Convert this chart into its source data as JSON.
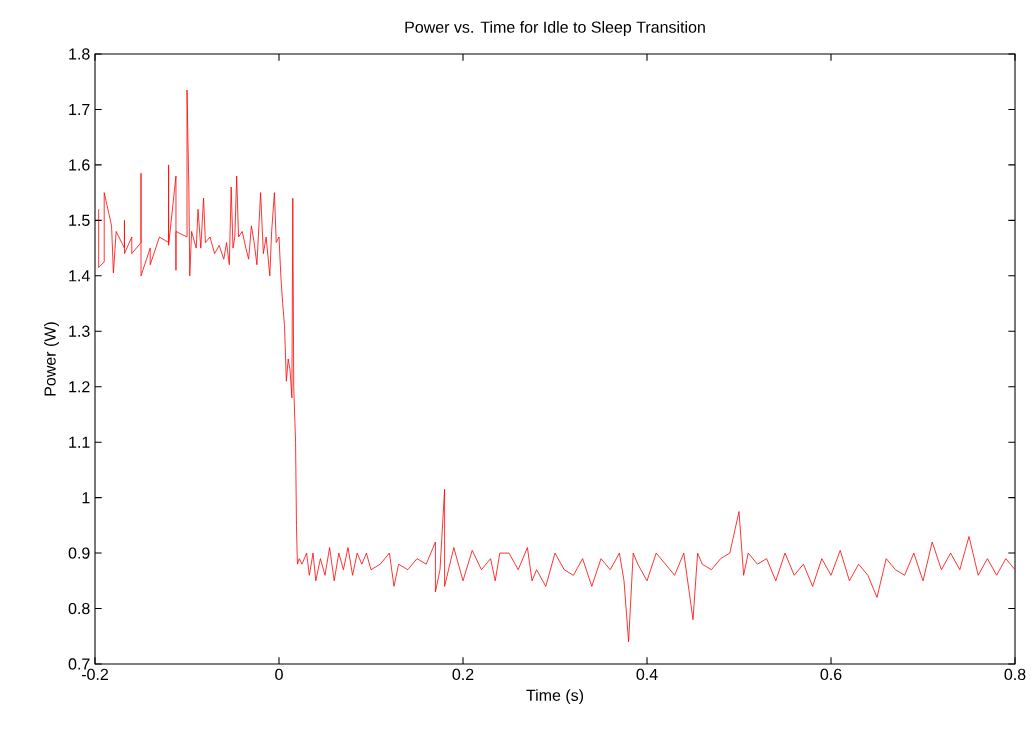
{
  "chart_data": {
    "type": "line",
    "title": "Power vs. Time for Idle to Sleep Transition",
    "xlabel": "Time (s)",
    "ylabel": "Power (W)",
    "xlim": [
      -0.2,
      0.8
    ],
    "ylim": [
      0.7,
      1.8
    ],
    "xticks": [
      -0.2,
      0,
      0.2,
      0.4,
      0.6,
      0.8
    ],
    "yticks": [
      0.7,
      0.8,
      0.9,
      1,
      1.1,
      1.2,
      1.3,
      1.4,
      1.5,
      1.6,
      1.7,
      1.8
    ],
    "grid": false,
    "marker": "none",
    "line_style": "solid",
    "series": [
      {
        "color": "#ff0000",
        "x": [
          -0.196,
          -0.196,
          -0.19,
          -0.19,
          -0.182,
          -0.18,
          -0.177,
          -0.168,
          -0.168,
          -0.168,
          -0.16,
          -0.16,
          -0.15,
          -0.15,
          -0.15,
          -0.14,
          -0.14,
          -0.13,
          -0.12,
          -0.12,
          -0.12,
          -0.112,
          -0.112,
          -0.112,
          -0.1,
          -0.1,
          -0.098,
          -0.097,
          -0.095,
          -0.09,
          -0.088,
          -0.085,
          -0.082,
          -0.08,
          -0.075,
          -0.07,
          -0.065,
          -0.06,
          -0.057,
          -0.054,
          -0.052,
          -0.05,
          -0.048,
          -0.046,
          -0.044,
          -0.04,
          -0.036,
          -0.033,
          -0.03,
          -0.027,
          -0.024,
          -0.02,
          -0.017,
          -0.014,
          -0.01,
          -0.008,
          -0.005,
          -0.003,
          0.0,
          0.002,
          0.004,
          0.006,
          0.008,
          0.01,
          0.012,
          0.014,
          0.015,
          0.016,
          0.018,
          0.019,
          0.02,
          0.022,
          0.025,
          0.03,
          0.033,
          0.037,
          0.04,
          0.045,
          0.05,
          0.055,
          0.06,
          0.065,
          0.07,
          0.075,
          0.08,
          0.085,
          0.09,
          0.095,
          0.1,
          0.11,
          0.12,
          0.125,
          0.13,
          0.14,
          0.15,
          0.16,
          0.17,
          0.17,
          0.175,
          0.18,
          0.18,
          0.19,
          0.2,
          0.21,
          0.22,
          0.23,
          0.235,
          0.24,
          0.25,
          0.26,
          0.27,
          0.275,
          0.28,
          0.29,
          0.3,
          0.31,
          0.32,
          0.33,
          0.34,
          0.35,
          0.36,
          0.37,
          0.375,
          0.38,
          0.385,
          0.39,
          0.4,
          0.41,
          0.42,
          0.43,
          0.44,
          0.45,
          0.455,
          0.46,
          0.47,
          0.48,
          0.49,
          0.5,
          0.505,
          0.51,
          0.52,
          0.53,
          0.54,
          0.55,
          0.56,
          0.57,
          0.58,
          0.59,
          0.6,
          0.61,
          0.62,
          0.63,
          0.64,
          0.65,
          0.66,
          0.67,
          0.68,
          0.69,
          0.7,
          0.71,
          0.72,
          0.73,
          0.74,
          0.75,
          0.76,
          0.77,
          0.78,
          0.79,
          0.8
        ],
        "values": [
          1.52,
          1.415,
          1.425,
          1.55,
          1.49,
          1.405,
          1.48,
          1.45,
          1.5,
          1.44,
          1.47,
          1.44,
          1.46,
          1.585,
          1.4,
          1.45,
          1.42,
          1.47,
          1.46,
          1.6,
          1.455,
          1.58,
          1.41,
          1.48,
          1.47,
          1.735,
          1.56,
          1.4,
          1.48,
          1.45,
          1.52,
          1.45,
          1.54,
          1.46,
          1.47,
          1.44,
          1.455,
          1.43,
          1.46,
          1.42,
          1.56,
          1.45,
          1.47,
          1.58,
          1.47,
          1.48,
          1.45,
          1.43,
          1.49,
          1.46,
          1.42,
          1.55,
          1.44,
          1.47,
          1.4,
          1.48,
          1.55,
          1.46,
          1.47,
          1.4,
          1.35,
          1.31,
          1.21,
          1.25,
          1.23,
          1.18,
          1.54,
          1.2,
          1.1,
          0.95,
          0.88,
          0.89,
          0.88,
          0.9,
          0.86,
          0.9,
          0.85,
          0.89,
          0.86,
          0.91,
          0.85,
          0.9,
          0.87,
          0.91,
          0.86,
          0.9,
          0.88,
          0.9,
          0.87,
          0.88,
          0.9,
          0.84,
          0.88,
          0.87,
          0.89,
          0.88,
          0.92,
          0.83,
          0.87,
          1.015,
          0.84,
          0.91,
          0.85,
          0.905,
          0.87,
          0.89,
          0.85,
          0.9,
          0.9,
          0.87,
          0.91,
          0.85,
          0.87,
          0.84,
          0.9,
          0.87,
          0.86,
          0.89,
          0.84,
          0.89,
          0.87,
          0.9,
          0.85,
          0.74,
          0.9,
          0.88,
          0.85,
          0.9,
          0.88,
          0.86,
          0.9,
          0.78,
          0.9,
          0.88,
          0.87,
          0.89,
          0.9,
          0.975,
          0.86,
          0.9,
          0.88,
          0.89,
          0.85,
          0.9,
          0.86,
          0.88,
          0.84,
          0.89,
          0.86,
          0.905,
          0.85,
          0.88,
          0.86,
          0.82,
          0.89,
          0.87,
          0.86,
          0.9,
          0.85,
          0.92,
          0.87,
          0.9,
          0.87,
          0.93,
          0.86,
          0.89,
          0.86,
          0.89,
          0.87
        ]
      }
    ]
  }
}
